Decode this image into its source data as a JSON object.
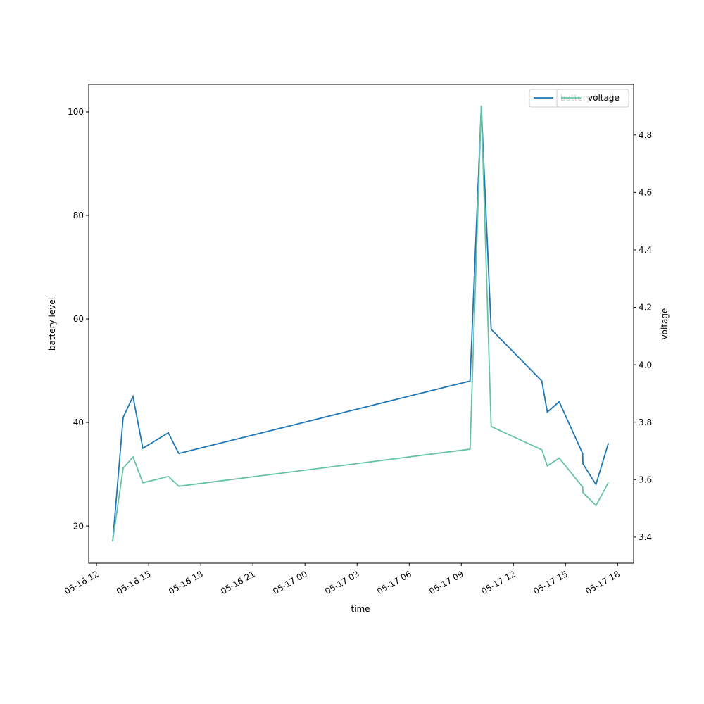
{
  "chart_data": {
    "type": "line",
    "x_label": "time",
    "y_label": "battery level",
    "y2_label": "voltage",
    "x": [
      "05-16 12:56",
      "05-16 13:32",
      "05-16 14:06",
      "05-16 14:40",
      "05-16 16:08",
      "05-16 16:44",
      "05-17 09:30",
      "05-17 10:09",
      "05-17 10:43",
      "05-17 13:38",
      "05-17 13:57",
      "05-17 14:38",
      "05-17 15:59",
      "05-17 16:00",
      "05-17 16:45",
      "05-17 17:28"
    ],
    "series": [
      {
        "name": "battery level",
        "color": "#1f77b4",
        "values": [
          17,
          41,
          45,
          35,
          38,
          34,
          48,
          101,
          58,
          48,
          42,
          44,
          34,
          32,
          28,
          36
        ]
      },
      {
        "name": "voltage",
        "color": "#66c2a5",
        "axis": "y2",
        "values": [
          3.388,
          3.64,
          3.679,
          3.589,
          3.611,
          3.577,
          3.706,
          4.903,
          3.785,
          3.704,
          3.648,
          3.675,
          3.574,
          3.555,
          3.51,
          3.59
        ]
      }
    ],
    "xlim": [
      "05-16 11:33",
      "05-17 18:55"
    ],
    "xticks": [
      "05-16 12",
      "05-16 15",
      "05-16 18",
      "05-16 21",
      "05-17 00",
      "05-17 03",
      "05-17 06",
      "05-17 09",
      "05-17 12",
      "05-17 15",
      "05-17 18"
    ],
    "ylim": [
      12.8,
      105.3
    ],
    "yticks": [
      20,
      40,
      60,
      80,
      100
    ],
    "y2lim": [
      3.309,
      4.976
    ],
    "y2ticks": [
      3.4,
      3.6,
      3.8,
      4.0,
      4.2,
      4.4,
      4.6,
      4.8
    ],
    "legend": "upper right"
  }
}
